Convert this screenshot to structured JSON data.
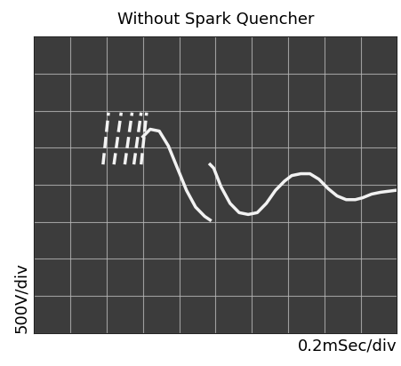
{
  "chart_data": {
    "type": "line",
    "title": "Without Spark Quencher",
    "x_label": "0.2mSec/div",
    "y_label": "500V/div",
    "xlim": [
      0,
      2.0
    ],
    "xticks": [
      0,
      0.2,
      0.4,
      0.6,
      0.8,
      1.0,
      1.2,
      1.4,
      1.6,
      1.8,
      2.0
    ],
    "ylim": [
      -2000,
      2000
    ],
    "yticks": [
      -2000,
      -1500,
      -1000,
      -500,
      0,
      500,
      1000,
      1500,
      2000
    ],
    "grid": true,
    "tick_labels": false,
    "series": [
      {
        "color": "#f2f2f2",
        "line_style": "dashed",
        "x": [
          0.38,
          0.41,
          0.41,
          0.44,
          0.48,
          0.48,
          0.5,
          0.54,
          0.54,
          0.55,
          0.59,
          0.59,
          0.59,
          0.62
        ],
        "values": [
          275,
          975,
          null,
          275,
          975,
          null,
          275,
          975,
          null,
          275,
          975,
          null,
          275,
          975
        ]
      },
      {
        "color": "#f2f2f2",
        "line_style": "solid",
        "x": [
          0.6,
          0.64,
          0.69,
          0.74,
          0.79,
          0.84,
          0.89,
          0.94,
          0.97,
          0.97,
          0.97,
          0.99,
          1.03,
          1.08,
          1.13,
          1.18,
          1.23,
          1.28,
          1.33,
          1.38,
          1.42,
          1.47,
          1.52,
          1.57,
          1.62,
          1.67,
          1.72,
          1.77,
          1.81,
          1.86,
          1.91,
          1.99
        ],
        "values": [
          650,
          750,
          725,
          525,
          225,
          -75,
          -300,
          -425,
          -475,
          null,
          275,
          225,
          -25,
          -250,
          -375,
          -400,
          -375,
          -250,
          -75,
          50,
          125,
          150,
          150,
          75,
          -50,
          -150,
          -200,
          -200,
          -175,
          -125,
          -100,
          -75
        ]
      }
    ]
  }
}
